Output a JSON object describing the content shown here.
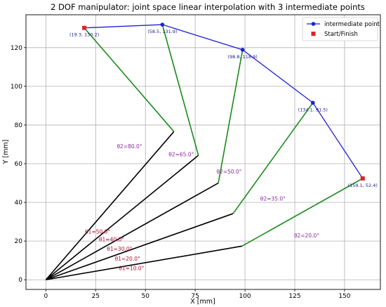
{
  "chart_data": {
    "type": "line",
    "title": "2 DOF manipulator: joint space linear interpolation with 3 intermediate points",
    "xlabel": "X [mm]",
    "ylabel": "Y [mm]",
    "xlim": [
      -10,
      168
    ],
    "ylim": [
      -5,
      137
    ],
    "xticks": [
      0,
      25,
      50,
      75,
      100,
      125,
      150
    ],
    "yticks": [
      0,
      20,
      40,
      60,
      80,
      100,
      120
    ],
    "grid": true,
    "legend_position": "top-right",
    "legend": [
      {
        "label": "intermediate point",
        "marker": "circle",
        "color": "#1f1fd6"
      },
      {
        "label": "Start/Finish",
        "marker": "square",
        "color": "#e0202a"
      }
    ],
    "origin": [
      0,
      0
    ],
    "configurations": [
      {
        "elbow": [
          98.5,
          17.4
        ],
        "end": [
          159.1,
          52.4
        ],
        "theta1_label": "θ1=10.0°",
        "theta2_label": "θ2=20.0°",
        "endpoint_label": "(159.1, 52.4)",
        "endpoint_type": "Start/Finish"
      },
      {
        "elbow": [
          94.0,
          34.2
        ],
        "end": [
          134.1,
          91.5
        ],
        "theta1_label": "θ1=20.0°",
        "theta2_label": "θ2=35.0°",
        "endpoint_label": "(134.1, 91.5)",
        "endpoint_type": "intermediate point"
      },
      {
        "elbow": [
          86.6,
          50.0
        ],
        "end": [
          98.8,
          118.9
        ],
        "theta1_label": "θ1=30.0°",
        "theta2_label": "θ2=50.0°",
        "endpoint_label": "(98.8, 118.9)",
        "endpoint_type": "intermediate point"
      },
      {
        "elbow": [
          76.6,
          64.3
        ],
        "end": [
          58.5,
          131.9
        ],
        "theta1_label": "θ1=40.0°",
        "theta2_label": "θ2=65.0°",
        "endpoint_label": "(58.5, 131.9)",
        "endpoint_type": "intermediate point"
      },
      {
        "elbow": [
          64.3,
          76.6
        ],
        "end": [
          19.3,
          130.2
        ],
        "theta1_label": "θ1=50.0°",
        "theta2_label": "θ2=80.0°",
        "endpoint_label": "(19.3, 130.2)",
        "endpoint_type": "Start/Finish"
      }
    ],
    "path_order": [
      4,
      3,
      2,
      1,
      0
    ],
    "theta1_label_positions": [
      [
        43,
        6
      ],
      [
        41,
        11
      ],
      [
        37,
        16
      ],
      [
        33,
        21
      ],
      [
        26,
        25
      ]
    ],
    "theta2_label_positions": [
      [
        131,
        23
      ],
      [
        114,
        42
      ],
      [
        92,
        56
      ],
      [
        68,
        65
      ],
      [
        42,
        69
      ]
    ],
    "colors": {
      "link1": "#000000",
      "link2": "#1a8a1a",
      "path": "#1f1fd6",
      "intermediate_marker": "#1f1fd6",
      "start_finish_marker": "#e0202a",
      "theta1_text": "#b0102e",
      "theta2_text": "#8a2a9a",
      "point_label_text": "#1a1a8a"
    }
  }
}
